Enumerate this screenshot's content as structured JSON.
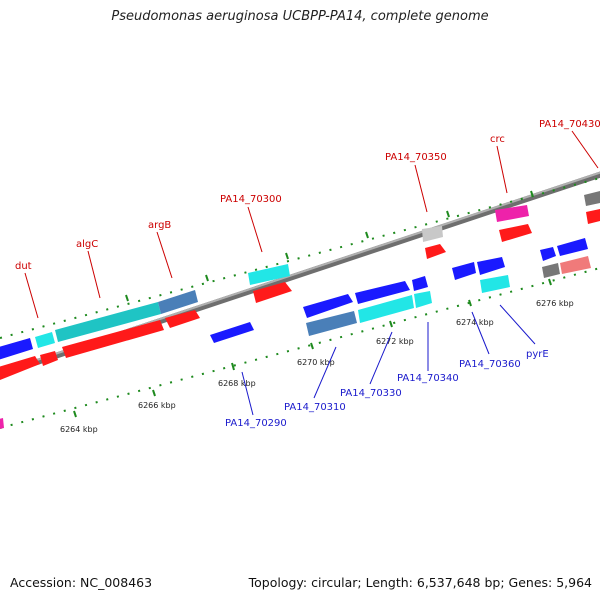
{
  "title": "Pseudomonas aeruginosa UCBPP-PA14, complete genome",
  "footer": {
    "accession": "Accession: NC_008463",
    "summary": "Topology: circular; Length: 6,537,648 bp; Genes: 5,964"
  },
  "colors": {
    "backbone": "#8a8a8a",
    "tick": "#1e8a1e",
    "label_forward": "#cc0000",
    "label_reverse": "#1a1acc",
    "red": "#ff1a1a",
    "blue": "#1a1aff",
    "cyan": "#22e6e6",
    "teal": "#1fc4c4",
    "steelblue": "#4a7fb8",
    "magenta": "#ee22aa",
    "gray": "#777777",
    "lightgray": "#c8c8c8",
    "pink": "#f07a7a"
  },
  "scale_labels": [
    "6264 kbp",
    "6266 kbp",
    "6268 kbp",
    "6270 kbp",
    "6272 kbp",
    "6274 kbp",
    "6276 kbp"
  ],
  "gene_labels_forward": [
    "dut",
    "algC",
    "argB",
    "PA14_70300",
    "PA14_70350",
    "crc",
    "PA14_70430"
  ],
  "gene_labels_reverse": [
    "PA14_70290",
    "PA14_70310",
    "PA14_70330",
    "PA14_70340",
    "PA14_70360",
    "pyrE"
  ]
}
